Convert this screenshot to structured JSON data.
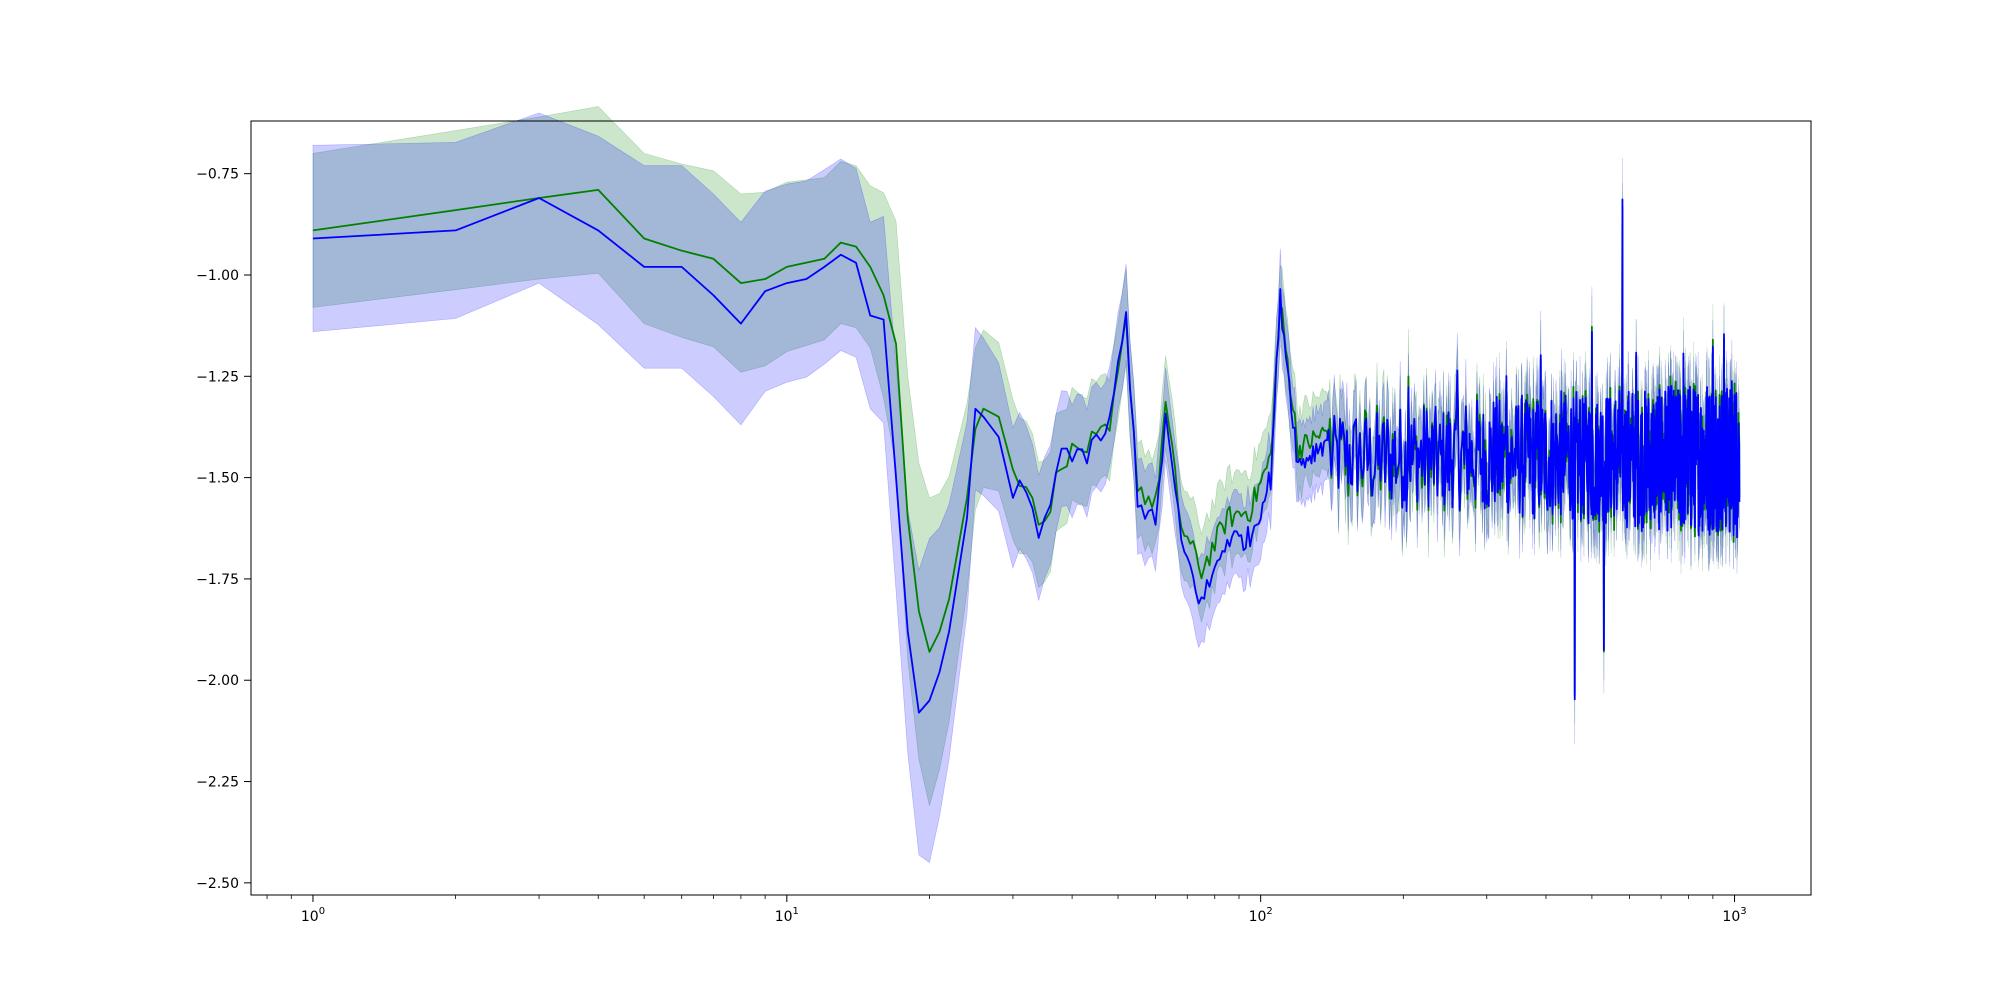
{
  "chart_data": {
    "type": "line",
    "title": "",
    "xlabel": "",
    "ylabel": "",
    "x_scale": "log",
    "xlim": [
      0.74,
      1450
    ],
    "ylim": [
      -2.53,
      -0.62
    ],
    "x_ticks": [
      {
        "value": 1,
        "base": "10",
        "exp": "0"
      },
      {
        "value": 10,
        "base": "10",
        "exp": "1"
      },
      {
        "value": 100,
        "base": "10",
        "exp": "2"
      },
      {
        "value": 1000,
        "base": "10",
        "exp": "3"
      }
    ],
    "y_ticks": [
      {
        "value": -0.75,
        "label": "−0.75"
      },
      {
        "value": -1.0,
        "label": "−1.00"
      },
      {
        "value": -1.25,
        "label": "−1.25"
      },
      {
        "value": -1.5,
        "label": "−1.50"
      },
      {
        "value": -1.75,
        "label": "−1.75"
      },
      {
        "value": -2.0,
        "label": "−2.00"
      },
      {
        "value": -2.25,
        "label": "−2.25"
      },
      {
        "value": -2.5,
        "label": "−2.50"
      }
    ],
    "grid": false,
    "legend": "none",
    "series": [
      {
        "color": "#008000",
        "band_color": "#008000",
        "band_opacity": 0.2,
        "key_points": [
          [
            1,
            -0.89
          ],
          [
            2,
            -0.84
          ],
          [
            3,
            -0.81
          ],
          [
            4,
            -0.79
          ],
          [
            5,
            -0.91
          ],
          [
            6,
            -0.94
          ],
          [
            7,
            -0.96
          ],
          [
            8,
            -1.02
          ],
          [
            9,
            -1.01
          ],
          [
            10,
            -0.98
          ],
          [
            12,
            -0.96
          ],
          [
            13,
            -0.92
          ],
          [
            14,
            -0.93
          ],
          [
            15,
            -0.98
          ],
          [
            16,
            -1.05
          ],
          [
            17,
            -1.17
          ],
          [
            18,
            -1.6
          ],
          [
            19,
            -1.83
          ],
          [
            20,
            -1.93
          ],
          [
            21,
            -1.88
          ],
          [
            22,
            -1.8
          ],
          [
            24,
            -1.55
          ],
          [
            25,
            -1.38
          ],
          [
            26,
            -1.33
          ],
          [
            28,
            -1.35
          ],
          [
            30,
            -1.48
          ],
          [
            32,
            -1.51
          ],
          [
            35,
            -1.63
          ],
          [
            38,
            -1.45
          ],
          [
            42,
            -1.43
          ],
          [
            48,
            -1.39
          ],
          [
            52,
            -1.12
          ],
          [
            55,
            -1.52
          ],
          [
            60,
            -1.57
          ],
          [
            63,
            -1.32
          ],
          [
            68,
            -1.62
          ],
          [
            75,
            -1.73
          ],
          [
            85,
            -1.6
          ],
          [
            95,
            -1.58
          ],
          [
            105,
            -1.45
          ],
          [
            110,
            -1.07
          ],
          [
            120,
            -1.43
          ],
          [
            140,
            -1.38
          ]
        ],
        "band_width": [
          [
            1,
            0.19
          ],
          [
            3,
            0.2
          ],
          [
            5,
            0.21
          ],
          [
            8,
            0.22
          ],
          [
            12,
            0.2
          ],
          [
            15,
            0.2
          ],
          [
            18,
            0.35
          ],
          [
            20,
            0.38
          ],
          [
            25,
            0.2
          ],
          [
            35,
            0.15
          ],
          [
            50,
            0.12
          ],
          [
            100,
            0.1
          ],
          [
            1000,
            0.08
          ]
        ]
      },
      {
        "color": "#0000ff",
        "band_color": "#0000ff",
        "band_opacity": 0.2,
        "key_points": [
          [
            1,
            -0.91
          ],
          [
            2,
            -0.89
          ],
          [
            3,
            -0.81
          ],
          [
            4,
            -0.89
          ],
          [
            5,
            -0.98
          ],
          [
            6,
            -0.98
          ],
          [
            7,
            -1.05
          ],
          [
            8,
            -1.12
          ],
          [
            9,
            -1.04
          ],
          [
            10,
            -1.02
          ],
          [
            11,
            -1.01
          ],
          [
            12,
            -0.98
          ],
          [
            13,
            -0.95
          ],
          [
            14,
            -0.97
          ],
          [
            15,
            -1.1
          ],
          [
            16,
            -1.11
          ],
          [
            17,
            -1.5
          ],
          [
            18,
            -1.88
          ],
          [
            19,
            -2.08
          ],
          [
            20,
            -2.05
          ],
          [
            21,
            -1.98
          ],
          [
            22,
            -1.88
          ],
          [
            24,
            -1.6
          ],
          [
            25,
            -1.33
          ],
          [
            26,
            -1.35
          ],
          [
            28,
            -1.4
          ],
          [
            30,
            -1.55
          ],
          [
            32,
            -1.52
          ],
          [
            34,
            -1.66
          ],
          [
            38,
            -1.43
          ],
          [
            42,
            -1.46
          ],
          [
            48,
            -1.37
          ],
          [
            52,
            -1.1
          ],
          [
            55,
            -1.55
          ],
          [
            60,
            -1.62
          ],
          [
            63,
            -1.35
          ],
          [
            68,
            -1.66
          ],
          [
            75,
            -1.81
          ],
          [
            85,
            -1.65
          ],
          [
            95,
            -1.65
          ],
          [
            105,
            -1.5
          ],
          [
            110,
            -1.06
          ],
          [
            120,
            -1.47
          ],
          [
            140,
            -1.4
          ]
        ],
        "band_width": [
          [
            1,
            0.23
          ],
          [
            3,
            0.21
          ],
          [
            5,
            0.25
          ],
          [
            8,
            0.25
          ],
          [
            12,
            0.24
          ],
          [
            15,
            0.23
          ],
          [
            18,
            0.3
          ],
          [
            20,
            0.4
          ],
          [
            25,
            0.2
          ],
          [
            35,
            0.15
          ],
          [
            50,
            0.12
          ],
          [
            100,
            0.1
          ],
          [
            1000,
            0.08
          ]
        ]
      }
    ],
    "noise_region": {
      "start": 140,
      "end": 1024,
      "center": -1.45,
      "amplitude": 0.16,
      "spikes": [
        [
          205,
          -1.27
        ],
        [
          260,
          -1.23
        ],
        [
          330,
          -1.24
        ],
        [
          390,
          -1.2
        ],
        [
          460,
          -2.05
        ],
        [
          500,
          -1.15
        ],
        [
          530,
          -1.93
        ],
        [
          580,
          -0.81
        ],
        [
          620,
          -1.2
        ],
        [
          780,
          -1.2
        ],
        [
          900,
          -1.18
        ],
        [
          950,
          -1.15
        ]
      ]
    }
  }
}
